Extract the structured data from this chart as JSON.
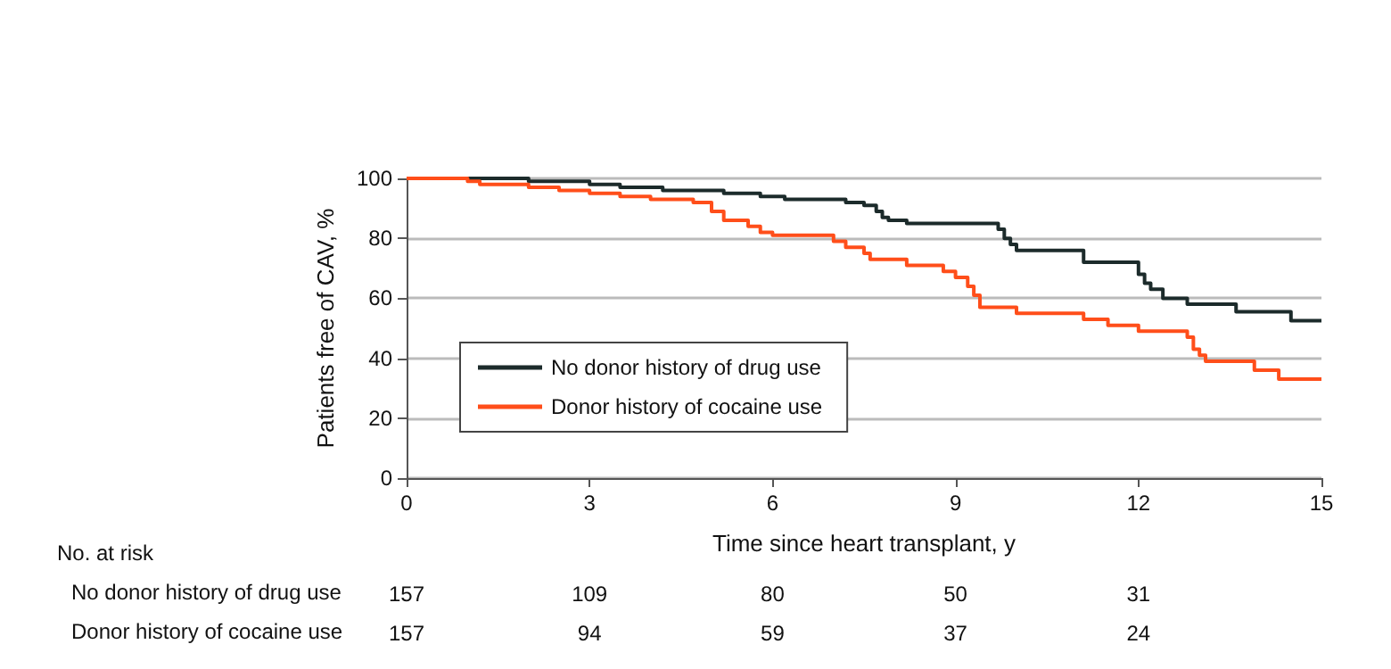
{
  "chart_data": {
    "type": "step",
    "xlabel": "Time since heart transplant, y",
    "ylabel": "Patients free of CAV, %",
    "xlim": [
      0,
      15
    ],
    "xticks": [
      0,
      3,
      6,
      9,
      12,
      15
    ],
    "ylim": [
      0,
      100
    ],
    "yticks": [
      0,
      20,
      40,
      60,
      80,
      100
    ],
    "grid": "y",
    "legend": "bottom left",
    "marker": "none",
    "line_style": "solid",
    "series": [
      {
        "name": "No donor history of drug use",
        "color": "#1c2b2b",
        "x": [
          0,
          2.0,
          3.0,
          3.5,
          4.2,
          5.2,
          5.8,
          6.2,
          7.2,
          7.5,
          7.7,
          7.8,
          7.9,
          8.2,
          9.7,
          9.8,
          9.9,
          10.0,
          11.1,
          12.0,
          12.1,
          12.2,
          12.4,
          12.8,
          13.6,
          14.5,
          15
        ],
        "values": [
          100,
          99,
          98,
          97,
          96,
          95,
          94,
          93,
          92,
          91,
          89,
          87,
          86,
          85,
          83,
          80,
          78,
          76,
          72,
          68,
          65,
          63,
          60,
          58,
          55.5,
          52.5,
          52.5
        ]
      },
      {
        "name": "Donor history of cocaine use",
        "color": "#ff4e1a",
        "x": [
          0,
          1.0,
          1.2,
          2.0,
          2.5,
          3.0,
          3.5,
          4.0,
          4.7,
          5.0,
          5.2,
          5.6,
          5.8,
          6.0,
          7.0,
          7.2,
          7.5,
          7.6,
          8.2,
          8.8,
          9.0,
          9.2,
          9.3,
          9.4,
          10.0,
          11.1,
          11.5,
          12.0,
          12.8,
          12.9,
          13.0,
          13.1,
          13.9,
          14.3,
          15
        ],
        "values": [
          100,
          99,
          98,
          97,
          96,
          95,
          94,
          93,
          92,
          89,
          86,
          84,
          82,
          81,
          79,
          77,
          75,
          73,
          71,
          69,
          67,
          64,
          61,
          57,
          55,
          53,
          51,
          49,
          47,
          43,
          41,
          39,
          36,
          33,
          33
        ]
      }
    ],
    "annotations": [
      "No. at risk",
      "157",
      "109",
      "80",
      "50",
      "31",
      "157",
      "94",
      "59",
      "37",
      "24"
    ]
  }
}
